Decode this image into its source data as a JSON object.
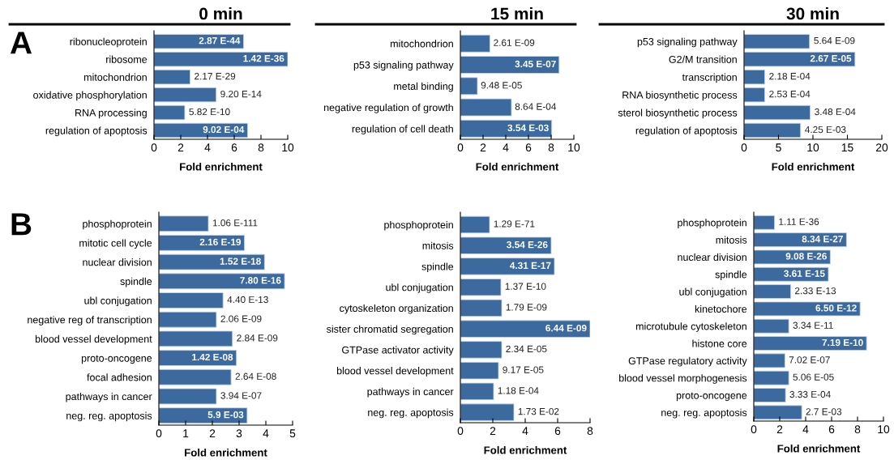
{
  "chart_data": [
    {
      "type": "bar",
      "orientation": "horizontal",
      "title": "0 min",
      "xlabel": "Fold enrichment",
      "color": "#3d6a9e",
      "categories": [
        "ribonucleoprotein",
        "ribosome",
        "mitochondrion",
        "oxidative phosphorylation",
        "RNA processing",
        "regulation of apoptosis"
      ],
      "values": [
        6.7,
        10.0,
        2.7,
        4.65,
        2.3,
        7.0
      ],
      "annotations": [
        "A",
        {
          "text": "2.87 E-44",
          "x": 6.7,
          "y": "ribonucleoprotein"
        },
        {
          "text": "1.42 E-36",
          "x": 10.0,
          "y": "ribosome"
        },
        {
          "text": "2.17 E-29",
          "x": 2.7,
          "y": "mitochondrion"
        },
        {
          "text": "9.20 E-14",
          "x": 4.65,
          "y": "oxidative phosphorylation"
        },
        {
          "text": "5.82 E-10",
          "x": 2.3,
          "y": "RNA processing"
        },
        {
          "text": "9.02 E-04",
          "x": 7.0,
          "y": "regulation of apoptosis"
        }
      ],
      "xlim": [
        0,
        10
      ],
      "xticks": [
        0,
        2,
        4,
        6,
        8,
        10
      ],
      "grid": false,
      "legend": false
    },
    {
      "type": "bar",
      "orientation": "horizontal",
      "title": "15 min",
      "xlabel": "Fold enrichment",
      "color": "#3d6a9e",
      "categories": [
        "mitochondrion",
        "p53 signaling pathway",
        "metal binding",
        "negative regulation of growth",
        "regulation of cell death"
      ],
      "values": [
        2.6,
        8.7,
        1.5,
        4.5,
        8.05
      ],
      "annotations": [
        {
          "text": "2.61 E-09",
          "x": 2.6,
          "y": "mitochondrion"
        },
        {
          "text": "3.45 E-07",
          "x": 8.7,
          "y": "p53 signaling pathway"
        },
        {
          "text": "9.48 E-05",
          "x": 1.5,
          "y": "metal binding"
        },
        {
          "text": "8.64 E-04",
          "x": 4.5,
          "y": "negative regulation of growth"
        },
        {
          "text": "3.54 E-03",
          "x": 8.05,
          "y": "regulation of cell death"
        }
      ],
      "xlim": [
        0,
        10
      ],
      "xticks": [
        0,
        2,
        4,
        6,
        8,
        10
      ],
      "grid": false,
      "legend": false
    },
    {
      "type": "bar",
      "orientation": "horizontal",
      "title": "30 min",
      "xlabel": "Fold enrichment",
      "color": "#3d6a9e",
      "categories": [
        "p53 signaling pathway",
        "G2/M transition",
        "transcription",
        "RNA biosynthetic process",
        "sterol biosynthetic process",
        "regulation of apoptosis"
      ],
      "values": [
        9.5,
        16.1,
        3.0,
        3.0,
        9.6,
        8.2
      ],
      "annotations": [
        {
          "text": "5.64 E-09",
          "x": 9.5,
          "y": "p53 signaling pathway"
        },
        {
          "text": "2.67 E-05",
          "x": 16.1,
          "y": "G2/M transition"
        },
        {
          "text": "2.18 E-04",
          "x": 3.0,
          "y": "transcription"
        },
        {
          "text": "2.53 E-04",
          "x": 3.0,
          "y": "RNA biosynthetic process"
        },
        {
          "text": "3.48 E-04",
          "x": 9.6,
          "y": "sterol biosynthetic process"
        },
        {
          "text": "4.25 E-03",
          "x": 8.2,
          "y": "regulation of apoptosis"
        }
      ],
      "xlim": [
        0,
        20
      ],
      "xticks": [
        0,
        5,
        10,
        15,
        20
      ],
      "grid": false,
      "legend": false
    },
    {
      "type": "bar",
      "orientation": "horizontal",
      "xlabel": "Fold enrichment",
      "color": "#3d6a9e",
      "categories": [
        "phosphoprotein",
        "mitotic cell cycle",
        "nuclear division",
        "spindle",
        "ubl conjugation",
        "negative reg of transcription",
        "blood vessel development",
        "proto-oncogene",
        "focal adhesion",
        "pathways in cancer",
        "neg. reg. apoptosis"
      ],
      "values": [
        1.85,
        3.2,
        3.95,
        4.7,
        2.4,
        2.15,
        2.75,
        2.9,
        2.7,
        2.15,
        3.3
      ],
      "annotations": [
        "B",
        {
          "text": "1.06 E-111",
          "x": 1.85,
          "y": "phosphoprotein"
        },
        {
          "text": "2.16 E-19",
          "x": 3.2,
          "y": "mitotic cell cycle"
        },
        {
          "text": "1.52 E-18",
          "x": 3.95,
          "y": "nuclear division"
        },
        {
          "text": "7.80 E-16",
          "x": 4.7,
          "y": "spindle"
        },
        {
          "text": "4.40 E-13",
          "x": 2.4,
          "y": "ubl conjugation"
        },
        {
          "text": "2.06 E-09",
          "x": 2.15,
          "y": "negative reg of transcription"
        },
        {
          "text": "2.84 E-09",
          "x": 2.75,
          "y": "blood vessel development"
        },
        {
          "text": "1.42 E-08",
          "x": 2.9,
          "y": "proto-oncogene"
        },
        {
          "text": "2.64 E-08",
          "x": 2.7,
          "y": "focal adhesion"
        },
        {
          "text": "3.94 E-07",
          "x": 2.15,
          "y": "pathways in cancer"
        },
        {
          "text": "5.9 E-03",
          "x": 3.3,
          "y": "neg. reg. apoptosis"
        }
      ],
      "xlim": [
        0,
        5
      ],
      "xticks": [
        0,
        1,
        2,
        3,
        4,
        5
      ],
      "grid": false,
      "legend": false
    },
    {
      "type": "bar",
      "orientation": "horizontal",
      "xlabel": "Fold enrichment",
      "color": "#3d6a9e",
      "categories": [
        "phosphoprotein",
        "mitosis",
        "spindle",
        "ubl conjugation",
        "cytoskeleton organization",
        "sister chromatid segregation",
        "GTPase activator activity",
        "blood vessel development",
        "pathways in cancer",
        "neg. reg. apoptosis"
      ],
      "values": [
        1.8,
        5.6,
        5.8,
        2.5,
        2.55,
        8.0,
        2.55,
        2.35,
        2.05,
        3.3
      ],
      "annotations": [
        {
          "text": "1.29 E-71",
          "x": 1.8,
          "y": "phosphoprotein"
        },
        {
          "text": "3.54 E-26",
          "x": 5.6,
          "y": "mitosis"
        },
        {
          "text": "4.31 E-17",
          "x": 5.8,
          "y": "spindle"
        },
        {
          "text": "1.37 E-10",
          "x": 2.5,
          "y": "ubl conjugation"
        },
        {
          "text": "1.79 E-09",
          "x": 2.55,
          "y": "cytoskeleton organization"
        },
        {
          "text": "6.44 E-09",
          "x": 8.0,
          "y": "sister chromatid segregation"
        },
        {
          "text": "2.34 E-05",
          "x": 2.55,
          "y": "GTPase activator activity"
        },
        {
          "text": "9.17 E-05",
          "x": 2.35,
          "y": "blood vessel development"
        },
        {
          "text": "1.18 E-04",
          "x": 2.05,
          "y": "pathways in cancer"
        },
        {
          "text": "1.73 E-02",
          "x": 3.3,
          "y": "neg. reg. apoptosis"
        }
      ],
      "xlim": [
        0,
        8
      ],
      "xticks": [
        0,
        2,
        4,
        6,
        8
      ],
      "grid": false,
      "legend": false
    },
    {
      "type": "bar",
      "orientation": "horizontal",
      "xlabel": "Fold enrichment",
      "color": "#3d6a9e",
      "categories": [
        "phosphoprotein",
        "mitosis",
        "nuclear division",
        "spindle",
        "ubl conjugation",
        "kinetochore",
        "microtubule cytoskeleton",
        "histone core",
        "GTPase regulatory activity",
        "blood vessel morphogenesis",
        "proto-oncogene",
        "neg. reg. apoptosis"
      ],
      "values": [
        1.6,
        7.15,
        5.9,
        5.75,
        2.85,
        8.2,
        2.7,
        8.7,
        2.4,
        2.7,
        2.45,
        3.7
      ],
      "annotations": [
        {
          "text": "1.11 E-36",
          "x": 1.6,
          "y": "phosphoprotein"
        },
        {
          "text": "8.34 E-27",
          "x": 7.15,
          "y": "mitosis"
        },
        {
          "text": "9.08 E-26",
          "x": 5.9,
          "y": "nuclear division"
        },
        {
          "text": "3.61 E-15",
          "x": 5.75,
          "y": "spindle"
        },
        {
          "text": "2.33 E-13",
          "x": 2.85,
          "y": "ubl conjugation"
        },
        {
          "text": "6.50 E-12",
          "x": 8.2,
          "y": "kinetochore"
        },
        {
          "text": "3.34 E-11",
          "x": 2.7,
          "y": "microtubule cytoskeleton"
        },
        {
          "text": "7.19 E-10",
          "x": 8.7,
          "y": "histone core"
        },
        {
          "text": "7.02 E-07",
          "x": 2.4,
          "y": "GTPase regulatory activity"
        },
        {
          "text": "5.06 E-05",
          "x": 2.7,
          "y": "blood vessel morphogenesis"
        },
        {
          "text": "3.33 E-04",
          "x": 2.45,
          "y": "proto-oncogene"
        },
        {
          "text": "2.7 E-03",
          "x": 3.7,
          "y": "neg. reg. apoptosis"
        }
      ],
      "xlim": [
        0,
        10
      ],
      "xticks": [
        0,
        2,
        4,
        6,
        8,
        10
      ],
      "grid": false,
      "legend": false
    }
  ]
}
